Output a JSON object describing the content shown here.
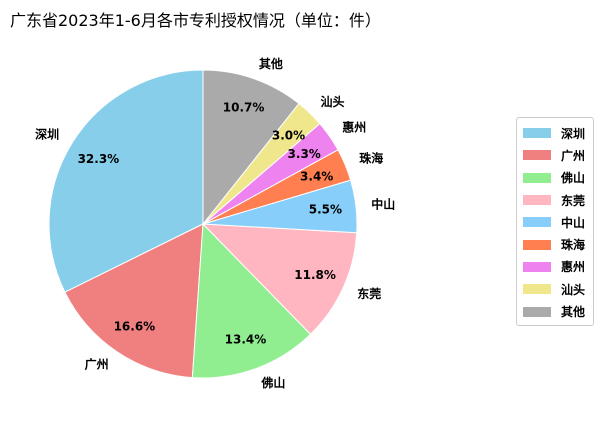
{
  "title": "广东省2023年1-6月各市专利授权情况（单位：件）",
  "chart_data": {
    "type": "pie",
    "title": "广东省2023年1-6月各市专利授权情况（单位：件）",
    "legend_position": "right",
    "start_angle_deg": 90,
    "direction": "counterclockwise",
    "slices": [
      {
        "label": "深圳",
        "value": 32.3,
        "pct_text": "32.3%",
        "color": "#87CEEB"
      },
      {
        "label": "广州",
        "value": 16.6,
        "pct_text": "16.6%",
        "color": "#F08080"
      },
      {
        "label": "佛山",
        "value": 13.4,
        "pct_text": "13.4%",
        "color": "#90EE90"
      },
      {
        "label": "东莞",
        "value": 11.8,
        "pct_text": "11.8%",
        "color": "#FFB6C1"
      },
      {
        "label": "中山",
        "value": 5.5,
        "pct_text": "5.5%",
        "color": "#87CEFA"
      },
      {
        "label": "珠海",
        "value": 3.4,
        "pct_text": "3.4%",
        "color": "#FF7F50"
      },
      {
        "label": "惠州",
        "value": 3.3,
        "pct_text": "3.3%",
        "color": "#EE82EE"
      },
      {
        "label": "汕头",
        "value": 3.0,
        "pct_text": "3.0%",
        "color": "#F0E68C"
      },
      {
        "label": "其他",
        "value": 10.7,
        "pct_text": "10.7%",
        "color": "#AAAAAA"
      }
    ]
  }
}
